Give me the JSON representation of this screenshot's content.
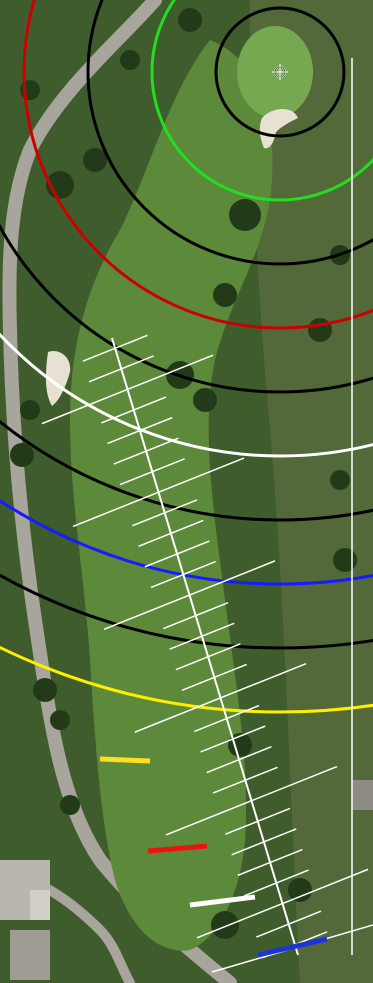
{
  "map": {
    "type": "golf-hole-yardage-map",
    "view": "satellite",
    "colors": {
      "rough": "#3f5c2c",
      "fairway": "#5d8a3a",
      "green": "#76a852",
      "cart_path": "#a7a59c",
      "bunker": "#e6e1d2",
      "trees": "#223a18",
      "field_east": "#53693a"
    },
    "pin": {
      "icon": "crosshair-icon"
    },
    "distance_arcs": [
      {
        "name": "black",
        "color": "#000000"
      },
      {
        "name": "green",
        "color": "#22dd22"
      },
      {
        "name": "black",
        "color": "#000000"
      },
      {
        "name": "red",
        "color": "#cc0000"
      },
      {
        "name": "black",
        "color": "#000000"
      },
      {
        "name": "white",
        "color": "#ffffff"
      },
      {
        "name": "black",
        "color": "#000000"
      },
      {
        "name": "blue",
        "color": "#1a1aff"
      },
      {
        "name": "black",
        "color": "#000000"
      },
      {
        "name": "yellow",
        "color": "#ffee00"
      }
    ],
    "tee_markers": [
      {
        "name": "yellow",
        "color": "#ffdd22"
      },
      {
        "name": "red",
        "color": "#ee1111"
      },
      {
        "name": "white",
        "color": "#ffffff"
      },
      {
        "name": "blue",
        "color": "#1a33dd"
      }
    ],
    "center_line": {
      "color": "#ffffff",
      "tick_count": 30
    }
  }
}
